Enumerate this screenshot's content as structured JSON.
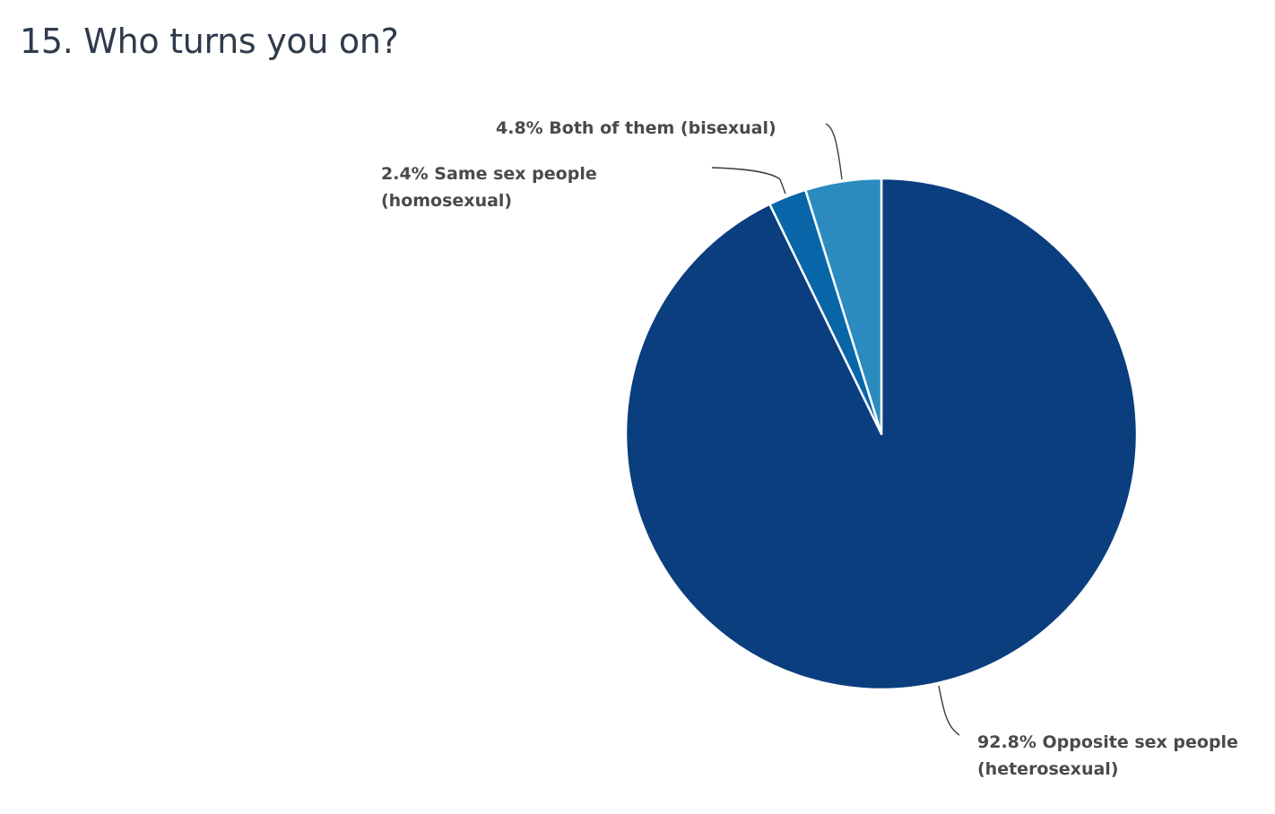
{
  "page": {
    "title": "15. Who turns you on?"
  },
  "chart_data": {
    "type": "pie",
    "title": "15. Who turns you on?",
    "start_angle_deg": 0,
    "direction": "clockwise",
    "slices": [
      {
        "category": "Opposite sex people (heterosexual)",
        "value": 92.8,
        "label_lines": [
          "92.8% Opposite sex people",
          "(heterosexual)"
        ],
        "color": "#0b3e7e"
      },
      {
        "category": "Same sex people (homosexual)",
        "value": 2.4,
        "label_lines": [
          "2.4% Same sex people",
          "(homosexual)"
        ],
        "color": "#0866a8"
      },
      {
        "category": "Both of them (bisexual)",
        "value": 4.8,
        "label_lines": [
          "4.8% Both of them (bisexual)"
        ],
        "color": "#2b8bbf"
      }
    ]
  }
}
